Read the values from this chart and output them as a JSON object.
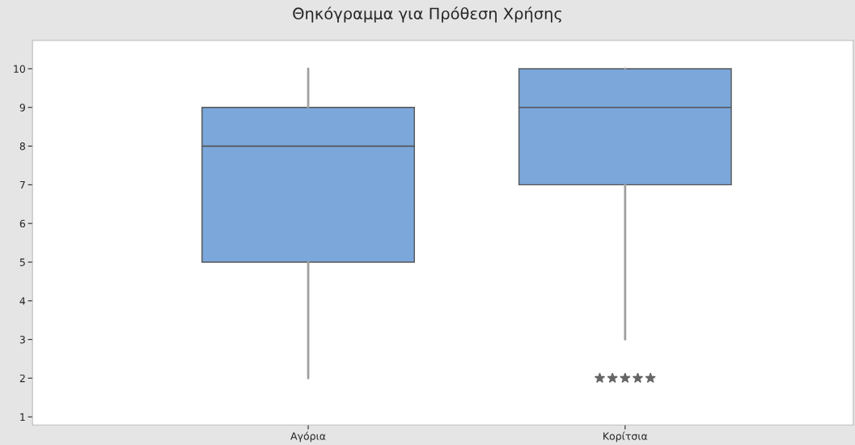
{
  "chart_data": {
    "type": "box",
    "title": "Θηκόγραμμα για Πρόθεση Χρήσης",
    "categories": [
      "Αγόρια",
      "Κορίτσια"
    ],
    "boxes": [
      {
        "low": 2,
        "q1": 5,
        "median": 8,
        "q3": 9,
        "high": 10
      },
      {
        "low": 3,
        "q1": 7,
        "median": 9,
        "q3": 10,
        "high": 10,
        "outliers": [
          2,
          2,
          2,
          2,
          2
        ]
      }
    ],
    "color": "#7ba7db",
    "ylim": [
      0.79,
      10.73
    ],
    "yticks": [
      1,
      2,
      3,
      4,
      5,
      6,
      7,
      8,
      9,
      10
    ],
    "grid": false,
    "marker": "star"
  }
}
